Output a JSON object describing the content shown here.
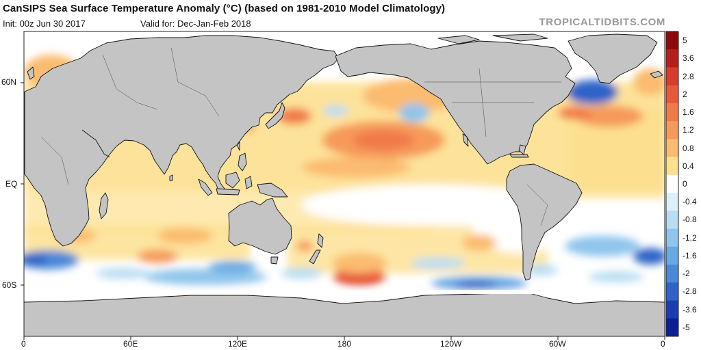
{
  "header": {
    "title": "CanSIPS Sea Surface Temperature Anomaly (°C) (based on 1981-2010 Model Climatology)",
    "init": "Init: 00z Jun 30 2017",
    "valid": "Valid for: Dec-Jan-Feb 2018",
    "brand": "TROPICALTIDBITS.COM"
  },
  "map": {
    "lat_labels": [
      "60N",
      "EQ",
      "60S"
    ],
    "lon_labels": [
      "0",
      "60E",
      "120E",
      "180",
      "120W",
      "60W",
      "0"
    ],
    "colors": {
      "ocean_neutral": "#ffffff",
      "land": "#c4c4c4",
      "coast": "#111111",
      "no_data": "#ffffff"
    }
  },
  "colorbar": {
    "unit": "°C",
    "labels": [
      "5",
      "3.6",
      "2.8",
      "2",
      "1.6",
      "1.2",
      "0.8",
      "0.4",
      "0",
      "-0.4",
      "-0.8",
      "-1.2",
      "-1.6",
      "-2",
      "-2.8",
      "-3.6",
      "-5"
    ],
    "colors": [
      "#8e0a0a",
      "#b81d1d",
      "#d83a2b",
      "#e8583a",
      "#f07a48",
      "#f69a5a",
      "#fbbb70",
      "#fde08f",
      "#ffffff",
      "#ddf0f8",
      "#b8ddf3",
      "#8fc5ec",
      "#66a9e3",
      "#4a88d8",
      "#2f63c7",
      "#1a3eb0",
      "#0a1f95"
    ]
  }
}
